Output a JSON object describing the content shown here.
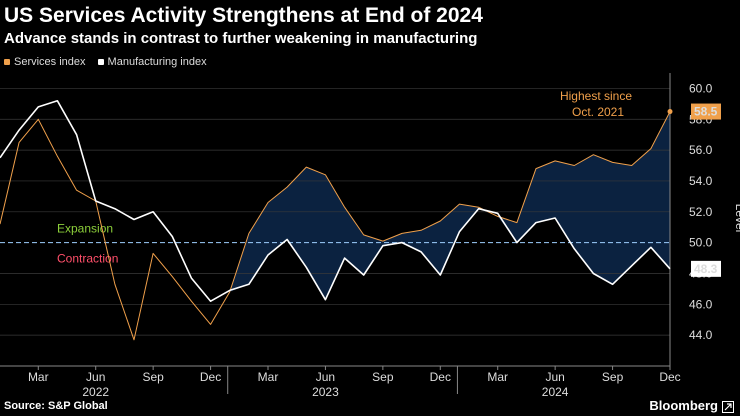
{
  "header": {
    "title": "US Services Activity Strengthens at End of 2024",
    "subtitle": "Advance stands in contrast to further weakening in manufacturing"
  },
  "legend": [
    {
      "label": "Services index",
      "color": "#f0a04b"
    },
    {
      "label": "Manufacturing index",
      "color": "#ffffff"
    }
  ],
  "footer": {
    "source": "Source: S&P Global",
    "brand": "Bloomberg"
  },
  "chart_data": {
    "type": "line",
    "title": "US Services Activity Strengthens at End of 2024",
    "ylabel": "Level",
    "ylim": [
      42.0,
      61.0
    ],
    "yticks": [
      "44.0",
      "46.0",
      "48.0",
      "50.0",
      "52.0",
      "54.0",
      "56.0",
      "58.0",
      "60.0"
    ],
    "xticks": [
      {
        "label": "Mar",
        "index": 2
      },
      {
        "label": "Jun",
        "index": 5
      },
      {
        "label": "Sep",
        "index": 8
      },
      {
        "label": "Dec",
        "index": 11
      },
      {
        "label": "Mar",
        "index": 14
      },
      {
        "label": "Jun",
        "index": 17
      },
      {
        "label": "Sep",
        "index": 20
      },
      {
        "label": "Dec",
        "index": 23
      },
      {
        "label": "Mar",
        "index": 26
      },
      {
        "label": "Jun",
        "index": 29
      },
      {
        "label": "Sep",
        "index": 32
      },
      {
        "label": "Dec",
        "index": 35
      }
    ],
    "years": [
      {
        "label": "2022",
        "index": 5
      },
      {
        "label": "2023",
        "index": 17
      },
      {
        "label": "2024",
        "index": 29
      }
    ],
    "months": [
      "Jan 2022",
      "Feb 2022",
      "Mar 2022",
      "Apr 2022",
      "May 2022",
      "Jun 2022",
      "Jul 2022",
      "Aug 2022",
      "Sep 2022",
      "Oct 2022",
      "Nov 2022",
      "Dec 2022",
      "Jan 2023",
      "Feb 2023",
      "Mar 2023",
      "Apr 2023",
      "May 2023",
      "Jun 2023",
      "Jul 2023",
      "Aug 2023",
      "Sep 2023",
      "Oct 2023",
      "Nov 2023",
      "Dec 2023",
      "Jan 2024",
      "Feb 2024",
      "Mar 2024",
      "Apr 2024",
      "May 2024",
      "Jun 2024",
      "Jul 2024",
      "Aug 2024",
      "Sep 2024",
      "Oct 2024",
      "Nov 2024",
      "Dec 2024"
    ],
    "series": [
      {
        "name": "Services index",
        "color": "#f0a04b",
        "values": [
          51.2,
          56.5,
          58.0,
          55.6,
          53.4,
          52.7,
          47.3,
          43.7,
          49.3,
          47.8,
          46.2,
          44.7,
          46.8,
          50.6,
          52.6,
          53.6,
          54.9,
          54.4,
          52.3,
          50.5,
          50.1,
          50.6,
          50.8,
          51.4,
          52.5,
          52.3,
          51.7,
          51.3,
          54.8,
          55.3,
          55.0,
          55.7,
          55.2,
          55.0,
          56.1,
          58.5
        ]
      },
      {
        "name": "Manufacturing index",
        "color": "#ffffff",
        "values": [
          55.5,
          57.3,
          58.8,
          59.2,
          57.0,
          52.7,
          52.2,
          51.5,
          52.0,
          50.4,
          47.7,
          46.2,
          46.9,
          47.3,
          49.2,
          50.2,
          48.4,
          46.3,
          49.0,
          47.9,
          49.8,
          50.0,
          49.4,
          47.9,
          50.7,
          52.2,
          51.9,
          50.0,
          51.3,
          51.6,
          49.6,
          48.0,
          47.3,
          48.5,
          49.7,
          48.3
        ]
      }
    ],
    "reference_line": {
      "value": 50.0,
      "above_label": "Expansion",
      "below_label": "Contraction"
    },
    "annotations": [
      {
        "line1": "Highest since",
        "line2": "Oct. 2021"
      }
    ],
    "end_labels": [
      "58.5",
      "48.3"
    ]
  }
}
